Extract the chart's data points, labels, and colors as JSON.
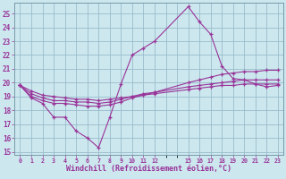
{
  "xlabel": "Windchill (Refroidissement éolien,°C)",
  "bg_color": "#cce8ee",
  "grid_color": "#99bbcc",
  "line_color": "#993399",
  "xlim": [
    -0.5,
    23.5
  ],
  "ylim": [
    14.8,
    25.8
  ],
  "yticks": [
    15,
    16,
    17,
    18,
    19,
    20,
    21,
    22,
    23,
    24,
    25
  ],
  "xtick_positions": [
    0,
    1,
    2,
    3,
    4,
    5,
    6,
    7,
    8,
    9,
    10,
    11,
    12,
    15,
    16,
    17,
    18,
    19,
    20,
    21,
    22,
    23
  ],
  "xtick_labels": [
    "0",
    "1",
    "2",
    "3",
    "4",
    "5",
    "6",
    "7",
    "8",
    "9",
    "10",
    "11",
    "12",
    "15",
    "16",
    "17",
    "18",
    "19",
    "20",
    "21",
    "22",
    "23"
  ],
  "lines": [
    {
      "x": [
        0,
        1,
        2,
        3,
        4,
        5,
        6,
        7,
        8,
        9,
        10,
        11,
        12,
        15,
        16,
        17,
        18,
        19,
        20,
        21,
        22,
        23
      ],
      "y": [
        19.8,
        18.9,
        18.5,
        17.5,
        17.5,
        16.5,
        16.0,
        15.3,
        17.5,
        19.9,
        22.0,
        22.5,
        23.0,
        25.5,
        24.4,
        23.5,
        21.2,
        20.3,
        20.2,
        19.9,
        19.7,
        19.8
      ]
    },
    {
      "x": [
        0,
        1,
        2,
        3,
        4,
        5,
        6,
        7,
        8,
        9,
        10,
        11,
        12,
        15,
        16,
        17,
        18,
        19,
        20,
        21,
        22,
        23
      ],
      "y": [
        19.8,
        19.0,
        18.7,
        18.5,
        18.5,
        18.4,
        18.3,
        18.3,
        18.4,
        18.6,
        18.9,
        19.1,
        19.3,
        20.0,
        20.2,
        20.4,
        20.6,
        20.7,
        20.8,
        20.8,
        20.9,
        20.9
      ]
    },
    {
      "x": [
        0,
        1,
        2,
        3,
        4,
        5,
        6,
        7,
        8,
        9,
        10,
        11,
        12,
        15,
        16,
        17,
        18,
        19,
        20,
        21,
        22,
        23
      ],
      "y": [
        19.8,
        19.2,
        18.9,
        18.7,
        18.7,
        18.6,
        18.6,
        18.5,
        18.6,
        18.8,
        19.0,
        19.2,
        19.3,
        19.7,
        19.8,
        19.9,
        20.0,
        20.1,
        20.2,
        20.2,
        20.2,
        20.2
      ]
    },
    {
      "x": [
        0,
        1,
        2,
        3,
        4,
        5,
        6,
        7,
        8,
        9,
        10,
        11,
        12,
        15,
        16,
        17,
        18,
        19,
        20,
        21,
        22,
        23
      ],
      "y": [
        19.8,
        19.4,
        19.1,
        19.0,
        18.9,
        18.8,
        18.8,
        18.7,
        18.8,
        18.9,
        19.0,
        19.1,
        19.2,
        19.5,
        19.6,
        19.7,
        19.8,
        19.8,
        19.9,
        19.9,
        19.9,
        19.9
      ]
    }
  ]
}
